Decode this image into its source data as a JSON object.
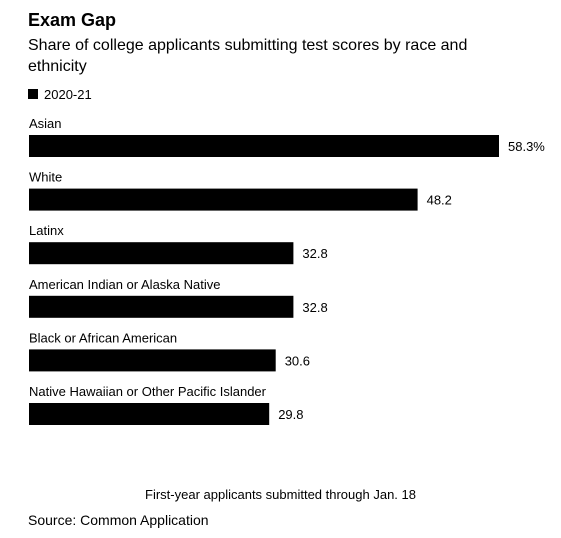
{
  "title": "Exam Gap",
  "subtitle": "Share of college applicants submitting test scores by race and ethnicity",
  "legend": {
    "label": "2020-21",
    "color": "#000000"
  },
  "chart_data": {
    "type": "bar",
    "orientation": "horizontal",
    "categories": [
      "Asian",
      "White",
      "Latinx",
      "American Indian or Alaska Native",
      "Black or African American",
      "Native Hawaiian or Other Pacific Islander"
    ],
    "series": [
      {
        "name": "2020-21",
        "color": "#000000",
        "values": [
          58.3,
          48.2,
          32.8,
          32.8,
          30.6,
          29.8
        ]
      }
    ],
    "value_labels": [
      "58.3%",
      "48.2",
      "32.8",
      "32.8",
      "30.6",
      "29.8"
    ],
    "xlim": [
      0,
      58.3
    ],
    "grid": false,
    "legend_position": "top-left"
  },
  "note": "First-year applicants submitted through Jan. 18",
  "source": "Source: Common Application"
}
